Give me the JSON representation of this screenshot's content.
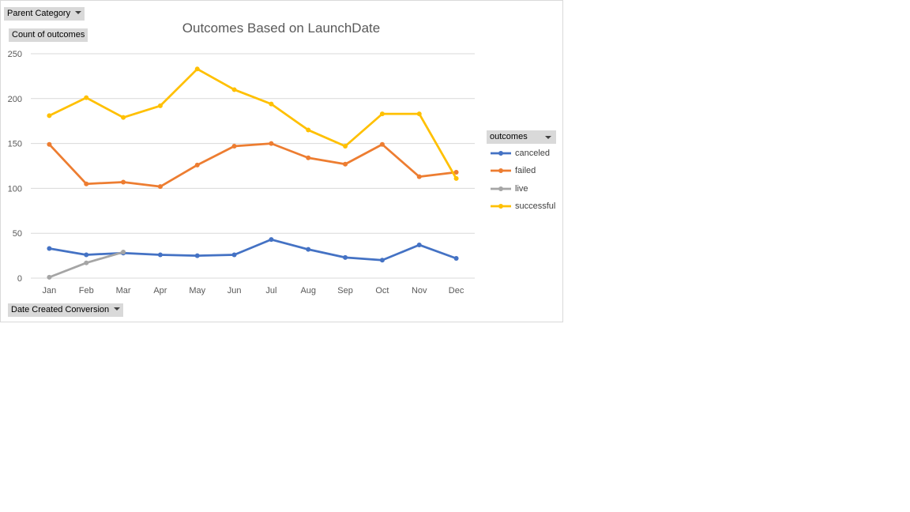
{
  "filters": {
    "parent_category": "Parent Category",
    "values_field": "Count of outcomes",
    "axis_field": "Date Created Conversion",
    "legend_field": "outcomes"
  },
  "colors": {
    "canceled": "#4472c4",
    "failed": "#ed7d31",
    "live": "#a5a5a5",
    "successful": "#ffc000",
    "gridline": "#d9d9d9",
    "axis_text": "#595959",
    "title_text": "#595959",
    "button_bg": "#d9d9d9"
  },
  "icons": {
    "dropdown": "chevron-down-icon"
  },
  "chart_data": {
    "type": "line",
    "title": "Outcomes Based on LaunchDate",
    "xlabel": "",
    "ylabel": "",
    "ylim": [
      0,
      250
    ],
    "yticks": [
      0,
      50,
      100,
      150,
      200,
      250
    ],
    "grid": true,
    "legend_position": "right",
    "categories": [
      "Jan",
      "Feb",
      "Mar",
      "Apr",
      "May",
      "Jun",
      "Jul",
      "Aug",
      "Sep",
      "Oct",
      "Nov",
      "Dec"
    ],
    "series": [
      {
        "name": "canceled",
        "values": [
          33,
          26,
          28,
          26,
          25,
          26,
          43,
          32,
          23,
          20,
          37,
          22
        ]
      },
      {
        "name": "failed",
        "values": [
          149,
          105,
          107,
          102,
          126,
          147,
          150,
          134,
          127,
          149,
          113,
          118
        ]
      },
      {
        "name": "live",
        "values": [
          1,
          17,
          29,
          null,
          null,
          null,
          null,
          null,
          null,
          null,
          null,
          null
        ]
      },
      {
        "name": "successful",
        "values": [
          181,
          201,
          179,
          192,
          233,
          210,
          194,
          165,
          147,
          183,
          183,
          111
        ]
      }
    ]
  }
}
